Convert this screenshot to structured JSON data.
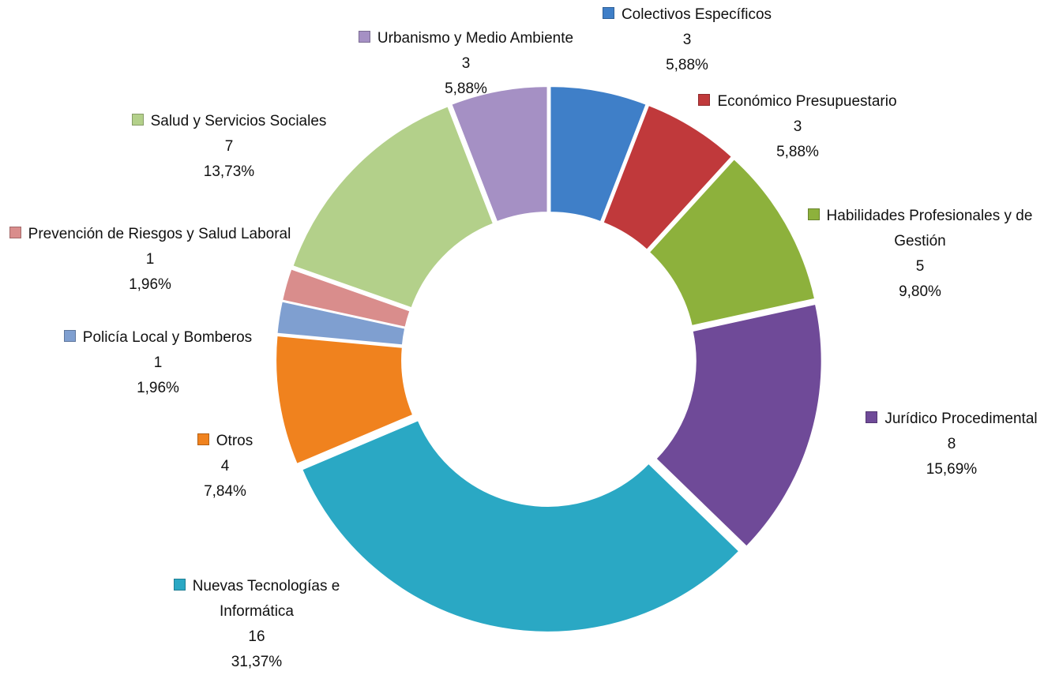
{
  "chart_data": {
    "type": "donut",
    "categories": [
      "Colectivos Específicos",
      "Económico Presupuestario",
      "Habilidades Profesionales y de Gestión",
      "Jurídico Procedimental",
      "Nuevas Tecnologías e Informática",
      "Otros",
      "Policía Local y Bomberos",
      "Prevención de Riesgos y Salud Laboral",
      "Salud y Servicios Sociales",
      "Urbanismo y Medio Ambiente"
    ],
    "values": [
      3,
      3,
      5,
      8,
      16,
      4,
      1,
      1,
      7,
      3
    ],
    "percentages": [
      5.88,
      5.88,
      9.8,
      15.69,
      31.37,
      7.84,
      1.96,
      1.96,
      13.73,
      5.88
    ],
    "percentage_labels": [
      "5,88%",
      "5,88%",
      "9,80%",
      "15,69%",
      "31,37%",
      "7,84%",
      "1,96%",
      "1,96%",
      "13,73%",
      "5,88%"
    ],
    "colors": [
      "#3f7fc8",
      "#c0393b",
      "#8db13c",
      "#6f4a98",
      "#2aa8c4",
      "#f0821e",
      "#7f9fd0",
      "#d98d8c",
      "#b3d08a",
      "#a590c4"
    ]
  }
}
